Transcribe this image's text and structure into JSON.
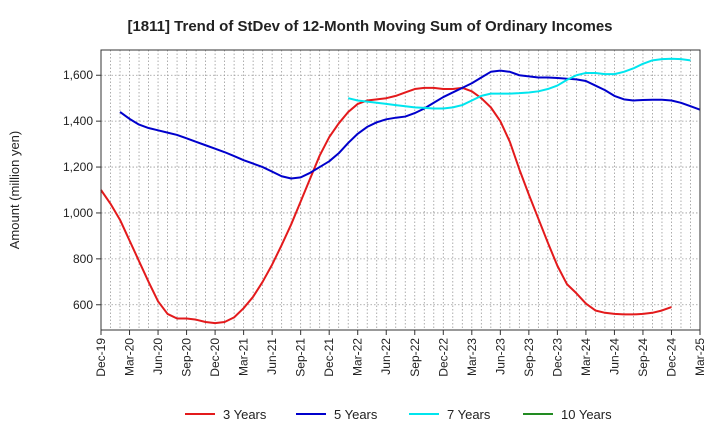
{
  "chart_data": {
    "type": "line",
    "title": "[1811]  Trend of StDev of 12-Month Moving Sum of Ordinary Incomes",
    "xlabel": "",
    "ylabel": "Amount (million yen)",
    "ylim": [
      490,
      1710
    ],
    "y_ticks": [
      600,
      800,
      1000,
      1200,
      1400,
      1600
    ],
    "y_tick_labels": [
      "600",
      "800",
      "1,000",
      "1,200",
      "1,400",
      "1,600"
    ],
    "x_tick_labels": [
      "Dec-19",
      "Mar-20",
      "Jun-20",
      "Sep-20",
      "Dec-20",
      "Mar-21",
      "Jun-21",
      "Sep-21",
      "Dec-21",
      "Mar-22",
      "Jun-22",
      "Sep-22",
      "Dec-22",
      "Mar-23",
      "Jun-23",
      "Sep-23",
      "Dec-23",
      "Mar-24",
      "Jun-24",
      "Sep-24",
      "Dec-24",
      "Mar-25"
    ],
    "x_index_range": [
      0,
      63
    ],
    "grid": true,
    "legend_position": "bottom",
    "series": [
      {
        "name": "3 Years",
        "color": "#e31a1c",
        "start_index": 0,
        "values": [
          1100,
          1040,
          970,
          880,
          790,
          700,
          615,
          560,
          540,
          540,
          535,
          525,
          520,
          525,
          545,
          585,
          635,
          700,
          775,
          860,
          950,
          1050,
          1150,
          1250,
          1330,
          1390,
          1440,
          1475,
          1490,
          1495,
          1500,
          1510,
          1525,
          1540,
          1545,
          1545,
          1540,
          1540,
          1545,
          1530,
          1500,
          1460,
          1400,
          1310,
          1190,
          1080,
          975,
          870,
          770,
          690,
          650,
          605,
          575,
          565,
          560,
          558,
          558,
          560,
          565,
          575,
          590
        ]
      },
      {
        "name": "5 Years",
        "color": "#0000cc",
        "start_index": 2,
        "values": [
          1440,
          1410,
          1385,
          1370,
          1360,
          1350,
          1340,
          1325,
          1310,
          1295,
          1280,
          1265,
          1248,
          1230,
          1215,
          1200,
          1180,
          1160,
          1150,
          1155,
          1175,
          1200,
          1225,
          1260,
          1305,
          1345,
          1375,
          1395,
          1408,
          1415,
          1420,
          1435,
          1455,
          1480,
          1505,
          1525,
          1545,
          1565,
          1590,
          1615,
          1620,
          1615,
          1600,
          1595,
          1590,
          1590,
          1588,
          1585,
          1582,
          1575,
          1555,
          1535,
          1510,
          1495,
          1490,
          1492,
          1493,
          1493,
          1490,
          1480,
          1465,
          1450
        ]
      },
      {
        "name": "7 Years",
        "color": "#00e5ee",
        "start_index": 26,
        "values": [
          1500,
          1490,
          1485,
          1480,
          1475,
          1470,
          1465,
          1460,
          1458,
          1455,
          1455,
          1460,
          1470,
          1490,
          1510,
          1520,
          1520,
          1520,
          1522,
          1525,
          1530,
          1540,
          1555,
          1580,
          1600,
          1610,
          1610,
          1605,
          1605,
          1615,
          1630,
          1650,
          1665,
          1670,
          1672,
          1670,
          1665
        ]
      },
      {
        "name": "10 Years",
        "color": "#228b22",
        "start_index": 0,
        "values": []
      }
    ]
  }
}
